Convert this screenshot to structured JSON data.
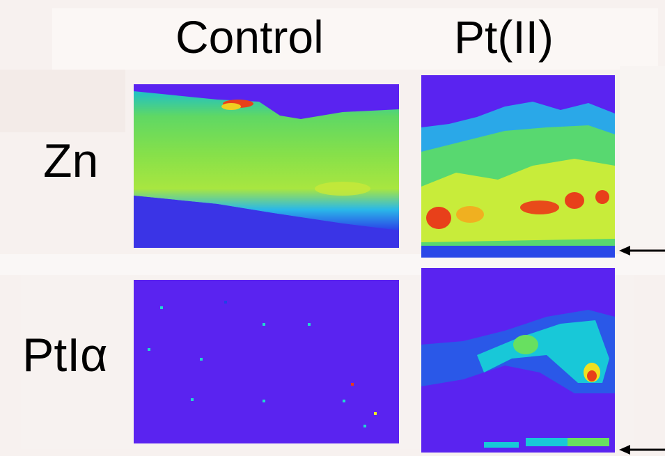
{
  "figure": {
    "column_headers": [
      "Control",
      "Pt(II)"
    ],
    "row_labels": [
      "Zn",
      "PtIα"
    ],
    "colors": {
      "background_low": "#5a23f0",
      "heatmap_low": "#2a38e8",
      "heatmap_mid_low": "#18c8d8",
      "heatmap_mid": "#7ee84a",
      "heatmap_mid_high": "#f0f020",
      "heatmap_high": "#e83a18"
    },
    "icons": [
      "left-arrow-icon",
      "left-arrow-icon"
    ]
  }
}
